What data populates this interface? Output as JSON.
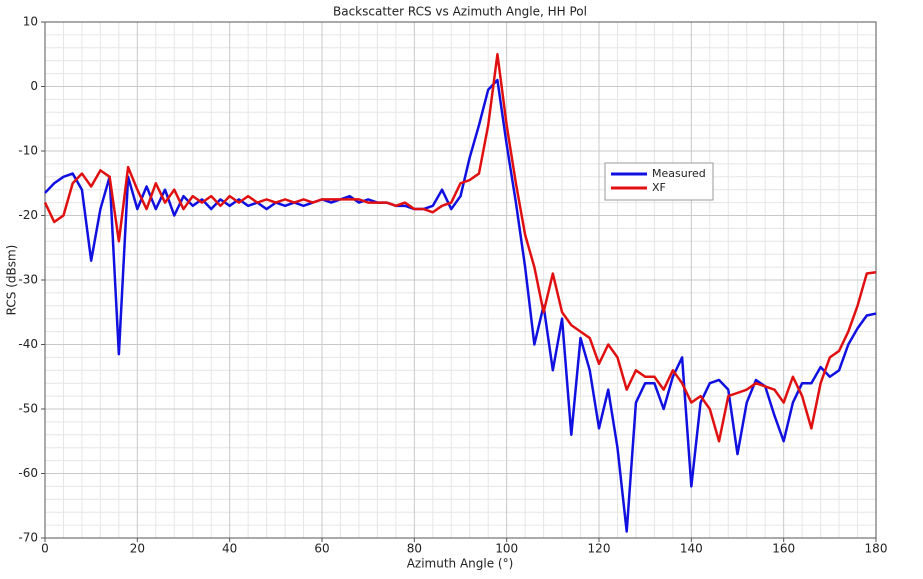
{
  "chart_data": {
    "type": "line",
    "title": "Backscatter RCS vs Azimuth Angle, HH Pol",
    "x_label": "Azimuth Angle (°)",
    "y_label": "RCS (dBsm)",
    "xlim": [
      0,
      180
    ],
    "xticks": [
      0,
      20,
      40,
      60,
      80,
      100,
      120,
      140,
      160,
      180
    ],
    "ylim": [
      -70,
      10
    ],
    "yticks": [
      -70,
      -60,
      -50,
      -40,
      -30,
      -20,
      -10,
      0,
      10
    ],
    "grid": true,
    "legend": "upper-right",
    "x": [
      0,
      2,
      4,
      6,
      8,
      10,
      12,
      14,
      16,
      18,
      20,
      22,
      24,
      26,
      28,
      30,
      32,
      34,
      36,
      38,
      40,
      42,
      44,
      46,
      48,
      50,
      52,
      54,
      56,
      58,
      60,
      62,
      64,
      66,
      68,
      70,
      72,
      74,
      76,
      78,
      80,
      82,
      84,
      86,
      88,
      90,
      92,
      94,
      96,
      98,
      100,
      102,
      104,
      106,
      108,
      110,
      112,
      114,
      116,
      118,
      120,
      122,
      124,
      126,
      128,
      130,
      132,
      134,
      136,
      138,
      140,
      142,
      144,
      146,
      148,
      150,
      152,
      154,
      156,
      158,
      160,
      162,
      164,
      166,
      168,
      170,
      172,
      174,
      176,
      178,
      180
    ],
    "series": [
      {
        "name": "Measured",
        "color": "#1010e0",
        "values": [
          -16.5,
          -15,
          -14,
          -13.5,
          -16,
          -27,
          -19,
          -14,
          -41.5,
          -14,
          -19,
          -15.5,
          -19,
          -16,
          -20,
          -17,
          -18.5,
          -17.5,
          -19,
          -17.5,
          -18.5,
          -17.5,
          -18.5,
          -18,
          -19,
          -18,
          -18.5,
          -18,
          -18.5,
          -18,
          -17.5,
          -18,
          -17.5,
          -17,
          -18,
          -17.5,
          -18,
          -18,
          -18.5,
          -18.5,
          -19,
          -19,
          -18.5,
          -16,
          -19,
          -17,
          -11,
          -6,
          -0.5,
          1,
          -9,
          -18,
          -28,
          -40,
          -34,
          -44,
          -36,
          -54,
          -39,
          -44,
          -53,
          -47,
          -56,
          -69,
          -49,
          -46,
          -46,
          -50,
          -45,
          -42,
          -62,
          -49,
          -46,
          -45.5,
          -47,
          -57,
          -49,
          -45.5,
          -46.5,
          -51,
          -55,
          -49,
          -46,
          -46,
          -43.5,
          -45,
          -44,
          -40,
          -37.5,
          -35.5,
          -35.2
        ]
      },
      {
        "name": "XF",
        "color": "#e01010",
        "values": [
          -18,
          -21,
          -20,
          -15,
          -13.5,
          -15.5,
          -13,
          -14,
          -24,
          -12.5,
          -16,
          -19,
          -15,
          -18,
          -16,
          -19,
          -17,
          -18,
          -17,
          -18.5,
          -17,
          -18,
          -17,
          -18,
          -17.5,
          -18,
          -17.5,
          -18,
          -17.5,
          -18,
          -17.5,
          -17.5,
          -17.5,
          -17.5,
          -17.5,
          -18,
          -18,
          -18,
          -18.5,
          -18,
          -19,
          -19,
          -19.5,
          -18.5,
          -18,
          -15,
          -14.5,
          -13.5,
          -6,
          5,
          -6,
          -15,
          -23,
          -28,
          -35,
          -29,
          -35,
          -37,
          -38,
          -39,
          -43,
          -40,
          -42,
          -47,
          -44,
          -45,
          -45,
          -47,
          -44,
          -46,
          -49,
          -48,
          -50,
          -55,
          -48,
          -47.5,
          -47,
          -46,
          -46.5,
          -47,
          -49,
          -45,
          -48,
          -53,
          -46,
          -42,
          -41,
          -38,
          -34,
          -29,
          -28.8
        ]
      }
    ]
  }
}
